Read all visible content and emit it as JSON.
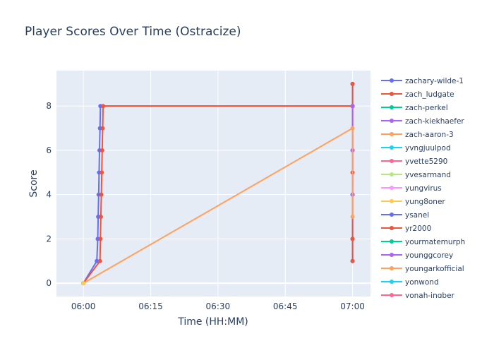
{
  "chart_data": {
    "type": "line",
    "title": "Player Scores Over Time (Ostracize)",
    "xlabel": "Time (HH:MM)",
    "ylabel": "Score",
    "x_ticks": [
      "06:00",
      "06:15",
      "06:30",
      "06:45",
      "07:00"
    ],
    "x_range_minutes": [
      -6,
      64
    ],
    "y_ticks": [
      0,
      2,
      4,
      6,
      8
    ],
    "ylim": [
      -0.6,
      9.6
    ],
    "grid": true,
    "legend_position": "right",
    "series": [
      {
        "name": "zachary-wilde-1",
        "color": "#636efa",
        "points": [
          [
            0,
            0
          ],
          [
            3,
            1
          ],
          [
            3.2,
            2
          ],
          [
            3.3,
            3
          ],
          [
            3.4,
            4
          ],
          [
            3.5,
            5
          ],
          [
            3.6,
            6
          ],
          [
            3.7,
            7
          ],
          [
            3.8,
            8
          ],
          [
            60,
            8
          ],
          [
            60,
            9
          ],
          [
            60,
            8
          ],
          [
            60,
            6
          ],
          [
            60,
            4
          ],
          [
            60,
            2
          ],
          [
            60,
            1
          ]
        ]
      },
      {
        "name": "zach_ludgate",
        "color": "#ef553b",
        "points": [
          [
            0,
            0
          ],
          [
            3.7,
            1
          ],
          [
            3.8,
            2
          ],
          [
            3.9,
            3
          ],
          [
            4.0,
            4
          ],
          [
            4.1,
            5
          ],
          [
            4.2,
            6
          ],
          [
            4.3,
            7
          ],
          [
            4.4,
            8
          ],
          [
            60,
            8
          ],
          [
            60,
            9
          ],
          [
            60,
            5
          ],
          [
            60,
            2
          ],
          [
            60,
            1
          ]
        ]
      },
      {
        "name": "zach-perkel",
        "color": "#00cc96",
        "points": []
      },
      {
        "name": "zach-kiekhaefer",
        "color": "#ab63fa",
        "points": [
          [
            60,
            8
          ],
          [
            60,
            6
          ],
          [
            60,
            4
          ]
        ]
      },
      {
        "name": "zach-aaron-3",
        "color": "#ffa15a",
        "points": [
          [
            0,
            0
          ],
          [
            60,
            7
          ],
          [
            60,
            3
          ]
        ]
      },
      {
        "name": "yvngjuulpod",
        "color": "#19d3f3",
        "points": []
      },
      {
        "name": "yvette5290",
        "color": "#ff6692",
        "points": []
      },
      {
        "name": "yvesarmand",
        "color": "#b6e880",
        "points": []
      },
      {
        "name": "yungvirus",
        "color": "#ff97ff",
        "points": []
      },
      {
        "name": "yung8oner",
        "color": "#fecb52",
        "points": [
          [
            0,
            0
          ]
        ]
      },
      {
        "name": "ysanel",
        "color": "#636efa",
        "points": []
      },
      {
        "name": "yr2000",
        "color": "#ef553b",
        "points": []
      },
      {
        "name": "yourmatemurph",
        "color": "#00cc96",
        "points": []
      },
      {
        "name": "younggcorey",
        "color": "#ab63fa",
        "points": []
      },
      {
        "name": "youngarkofficial",
        "color": "#ffa15a",
        "points": []
      },
      {
        "name": "yonwond",
        "color": "#19d3f3",
        "points": []
      },
      {
        "name": "yonah-ingber",
        "color": "#ff6692",
        "points": []
      }
    ]
  }
}
